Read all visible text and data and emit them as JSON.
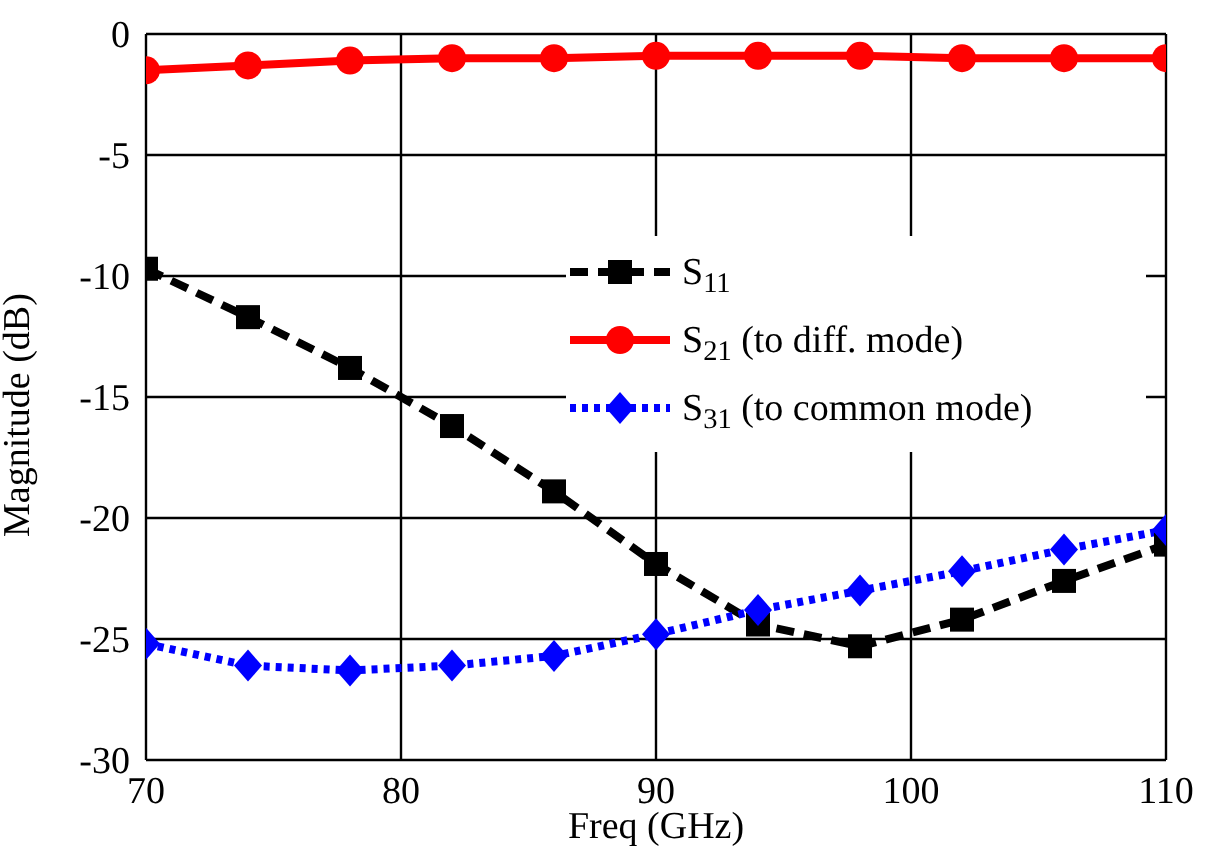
{
  "chart_data": {
    "type": "line",
    "xlabel": "Freq (GHz)",
    "ylabel": "Magnitude (dB)",
    "x": [
      70,
      74,
      78,
      82,
      86,
      90,
      94,
      98,
      102,
      106,
      110
    ],
    "series": [
      {
        "name": "S$_{11}$",
        "color": "#000000",
        "marker": "square",
        "line_style": "dashed",
        "values": [
          -9.7,
          -11.7,
          -13.8,
          -16.2,
          -18.9,
          -21.9,
          -24.4,
          -25.3,
          -24.2,
          -22.6,
          -21.1
        ]
      },
      {
        "name": "S$_{21}$ (to diff. mode)",
        "color": "#ff0000",
        "marker": "circle",
        "line_style": "solid",
        "values": [
          -1.5,
          -1.3,
          -1.1,
          -1.0,
          -1.0,
          -0.9,
          -0.9,
          -0.9,
          -1.0,
          -1.0,
          -1.0
        ]
      },
      {
        "name": "S$_{31}$ (to common mode)",
        "color": "#0000ff",
        "marker": "diamond",
        "line_style": "dotted",
        "values": [
          -25.2,
          -26.1,
          -26.3,
          -26.1,
          -25.7,
          -24.8,
          -23.8,
          -23.0,
          -22.2,
          -21.3,
          -20.5
        ]
      }
    ],
    "xlim": [
      70,
      110
    ],
    "xticks": [
      70,
      80,
      90,
      100,
      110
    ],
    "ylim": [
      -30,
      0
    ],
    "yticks": [
      -30,
      -25,
      -20,
      -15,
      -10,
      -5,
      0
    ],
    "grid": true,
    "legend": "right"
  }
}
